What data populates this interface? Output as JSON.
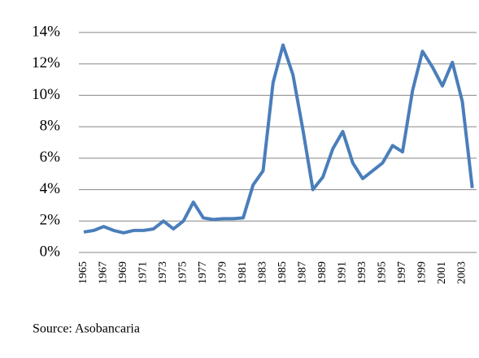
{
  "chart_data": {
    "type": "line",
    "categories": [
      "1965",
      null,
      "1967",
      null,
      "1969",
      null,
      "1971",
      null,
      "1973",
      null,
      "1975",
      null,
      "1977",
      null,
      "1979",
      null,
      "1981",
      null,
      "1983",
      null,
      "1985",
      null,
      "1987",
      null,
      "1989",
      null,
      "1991",
      null,
      "1993",
      null,
      "1995",
      null,
      "1997",
      null,
      "1999",
      null,
      "2001",
      null,
      "2003",
      null
    ],
    "values": [
      1.3,
      1.4,
      1.65,
      1.4,
      1.25,
      1.4,
      1.4,
      1.5,
      2.0,
      1.5,
      2.0,
      3.2,
      2.2,
      2.1,
      2.15,
      2.15,
      2.2,
      4.3,
      5.2,
      10.8,
      13.2,
      11.3,
      7.8,
      4.0,
      4.8,
      6.6,
      7.7,
      5.7,
      4.7,
      5.2,
      5.7,
      6.8,
      6.4,
      10.3,
      12.8,
      11.8,
      10.6,
      12.1,
      9.6,
      4.1
    ],
    "color": "#4a7ebb",
    "ylim": [
      0,
      14
    ],
    "yticks": [
      {
        "value": 0,
        "label": "0%"
      },
      {
        "value": 2,
        "label": "2%"
      },
      {
        "value": 4,
        "label": "4%"
      },
      {
        "value": 6,
        "label": "6%"
      },
      {
        "value": 8,
        "label": "8%"
      },
      {
        "value": 10,
        "label": "10%"
      },
      {
        "value": 12,
        "label": "12%"
      },
      {
        "value": 14,
        "label": "14%"
      }
    ],
    "grid": true,
    "source": "Source:  Asobancaria"
  }
}
